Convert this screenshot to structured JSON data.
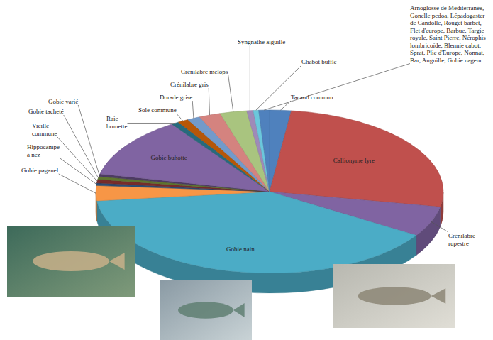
{
  "chart_data": {
    "type": "pie",
    "categories": [
      "Tacaud commun",
      "Callionyme lyre",
      "Crénilabre rupestre",
      "Gobie nain",
      "Gobie paganel",
      "Hippocampe à nez",
      "Vieille commune",
      "Gobie tacheté",
      "Gobie varié",
      "Gobie buhotte",
      "Raie brunette",
      "Sole commune",
      "Dorade grise",
      "Crénilabre gris",
      "Crénilabre melops",
      "Syngnathe aiguille",
      "Chabot buffle",
      "Arnoglosse de Méditerranée, Gonelle pedoa, Lépadogaster de Candolle, Rouget barbet, Flet d'europe, Barbue, Targie royale, Saint Pierre, Nérophis lombricoïde, Blennie cabot, Sprat, Plie d'Europe, Nonnat, Bar, Anguille, Gobie nageur"
    ],
    "values": [
      2,
      26,
      6,
      39.2,
      3,
      0.5,
      0.7,
      0.6,
      0.5,
      12,
      0.7,
      1,
      1.2,
      2,
      2.5,
      0.6,
      0.5,
      1
    ],
    "colors": [
      "#4f81bd",
      "#c0504d",
      "#8064a2",
      "#4bacc6",
      "#f79646",
      "#2c4d75",
      "#772c2a",
      "#5f7530",
      "#4d3b62",
      "#8064a2",
      "#276a7c",
      "#b65708",
      "#729aca",
      "#d4837f",
      "#a9c47f",
      "#9f8ab8",
      "#6bc7dc",
      "#4f81bd"
    ]
  }
}
